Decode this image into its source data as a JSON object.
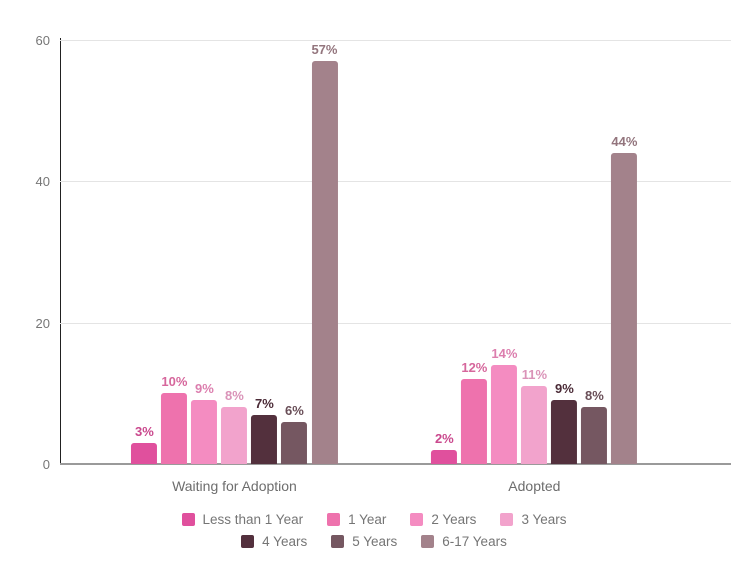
{
  "chart_data": {
    "type": "bar",
    "title": "",
    "categories": [
      "Waiting for Adoption",
      "Adopted"
    ],
    "series": [
      {
        "name": "Less than 1 Year",
        "color": "#e0509d",
        "values": [
          3,
          2
        ]
      },
      {
        "name": "1 Year",
        "color": "#ee72ad",
        "values": [
          10,
          12
        ]
      },
      {
        "name": "2 Years",
        "color": "#f48cc1",
        "values": [
          9,
          14
        ]
      },
      {
        "name": "3 Years",
        "color": "#f2a3cc",
        "values": [
          8,
          11
        ]
      },
      {
        "name": "4 Years",
        "color": "#53303d",
        "values": [
          7,
          9
        ]
      },
      {
        "name": "5 Years",
        "color": "#755761",
        "values": [
          6,
          8
        ]
      },
      {
        "name": "6-17 Years",
        "color": "#a3828b",
        "values": [
          57,
          44
        ]
      }
    ],
    "value_labels": [
      [
        "3%",
        "10%",
        "9%",
        "8%",
        "7%",
        "6%",
        "57%"
      ],
      [
        "2%",
        "12%",
        "14%",
        "11%",
        "9%",
        "8%",
        "44%"
      ]
    ],
    "value_suffix": "%",
    "ylim": [
      0,
      60
    ],
    "yticks": [
      0,
      20,
      40,
      60
    ],
    "xlabel": "",
    "ylabel": "",
    "grid": true,
    "legend_position": "bottom",
    "legend_rows": [
      4,
      3
    ],
    "colors": {
      "axis_line": "#212121",
      "baseline": "#9a9a9a",
      "gridline": "#e4e4e4",
      "tick_text": "#767676",
      "category_text": "#6d6d6d",
      "legend_text": "#757575",
      "background": "#ffffff"
    }
  }
}
